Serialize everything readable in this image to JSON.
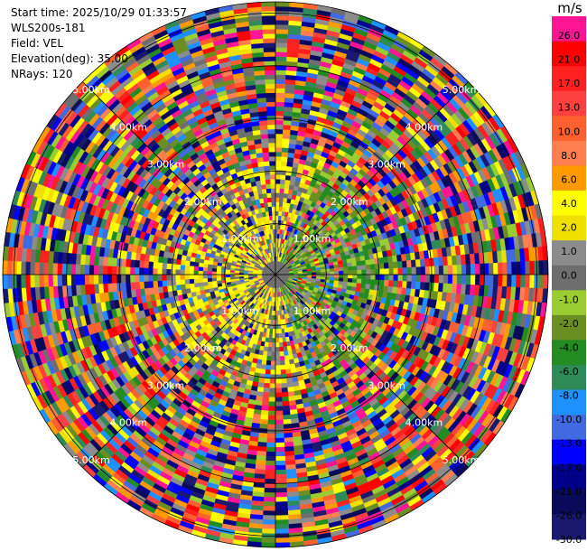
{
  "info": {
    "start_time": "Start time: 2025/10/29 01:33:57",
    "instrument": "WLS200s-181",
    "field": "Field: VEL",
    "elevation": "Elevation(deg): 35.00",
    "nrays": "NRays: 120"
  },
  "colorbar": {
    "unit": "m/s",
    "ticks": [
      "26.0",
      "21.0",
      "17.0",
      "13.0",
      "10.0",
      "8.0",
      "6.0",
      "4.0",
      "2.0",
      "1.0",
      "0.0",
      "-1.0",
      "-2.0",
      "-4.0",
      "-6.0",
      "-8.0",
      "-10.0",
      "-13.0",
      "-17.0",
      "-21.0",
      "-26.0",
      "-30.0"
    ],
    "colors": [
      "#ff1493",
      "#ff0000",
      "#ff2020",
      "#ff4040",
      "#ff6030",
      "#ff7f50",
      "#ff9a00",
      "#ffff00",
      "#f0e000",
      "#8c8c8c",
      "#6e6e6e",
      "#9acd32",
      "#6b8e23",
      "#228b22",
      "#2e8b57",
      "#1e90ff",
      "#4169e1",
      "#0000ff",
      "#00008b",
      "#0a0a5a",
      "#191970"
    ]
  },
  "chart_data": {
    "type": "heatmap",
    "projection": "polar-ppi",
    "field": "VEL",
    "nrays": 120,
    "elevation_deg": 35.0,
    "range_rings_km": [
      "1.00km",
      "2.00km",
      "3.00km",
      "4.00km",
      "5.00km"
    ],
    "colorbar_range": [
      -30.0,
      26.0
    ]
  }
}
